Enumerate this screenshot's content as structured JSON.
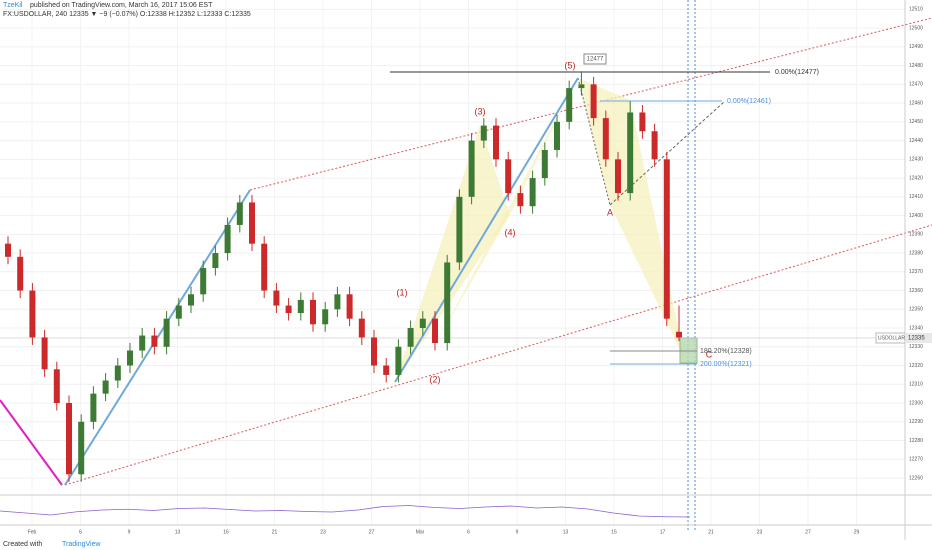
{
  "header": {
    "author": "TzeKil",
    "published": "published on TradingView.com, March 16, 2017 15:06 EST",
    "symbol_line": "FX:USDOLLAR, 240  12335 ▼ −9 (−0.07%) O:12338 H:12352 L:12333 C:12335"
  },
  "chart_data": {
    "type": "candlestick",
    "symbol": "USDOLLAR",
    "last_price": 12335,
    "open": [
      12385,
      12378,
      12360,
      12335,
      12318,
      12300,
      12262,
      12290,
      12305,
      12312,
      12320,
      12328,
      12336,
      12330,
      12345,
      12352,
      12358,
      12372,
      12380,
      12395,
      12407,
      12385,
      12360,
      12352,
      12348,
      12355,
      12342,
      12350,
      12358,
      12345,
      12335,
      12320,
      12315,
      12330,
      12340,
      12345,
      12332,
      12375,
      12410,
      12440,
      12448,
      12430,
      12412,
      12405,
      12420,
      12435,
      12450,
      12468,
      12470,
      12452,
      12430,
      12412,
      12455,
      12445,
      12430,
      12338
    ],
    "high": [
      12389,
      12382,
      12364,
      12339,
      12322,
      12304,
      12294,
      12309,
      12316,
      12324,
      12332,
      12340,
      12340,
      12349,
      12356,
      12362,
      12376,
      12384,
      12399,
      12411,
      12411,
      12389,
      12364,
      12356,
      12359,
      12359,
      12354,
      12362,
      12362,
      12349,
      12339,
      12324,
      12334,
      12344,
      12349,
      12349,
      12379,
      12414,
      12444,
      12452,
      12452,
      12434,
      12416,
      12424,
      12439,
      12454,
      12472,
      12477,
      12474,
      12456,
      12434,
      12461,
      12459,
      12449,
      12434,
      12352
    ],
    "low": [
      12374,
      12356,
      12331,
      12314,
      12296,
      12258,
      12258,
      12286,
      12301,
      12308,
      12316,
      12324,
      12326,
      12326,
      12341,
      12348,
      12354,
      12368,
      12376,
      12391,
      12381,
      12356,
      12348,
      12344,
      12344,
      12338,
      12338,
      12346,
      12341,
      12331,
      12316,
      12311,
      12311,
      12326,
      12336,
      12328,
      12328,
      12371,
      12406,
      12436,
      12426,
      12408,
      12401,
      12401,
      12416,
      12431,
      12446,
      12464,
      12448,
      12426,
      12408,
      12408,
      12441,
      12426,
      12341,
      12333
    ],
    "close": [
      12378,
      12360,
      12335,
      12318,
      12300,
      12262,
      12290,
      12305,
      12312,
      12320,
      12328,
      12336,
      12330,
      12345,
      12352,
      12358,
      12372,
      12380,
      12395,
      12407,
      12385,
      12360,
      12352,
      12348,
      12355,
      12342,
      12350,
      12358,
      12345,
      12335,
      12320,
      12315,
      12330,
      12340,
      12345,
      12332,
      12375,
      12410,
      12440,
      12448,
      12430,
      12412,
      12405,
      12420,
      12435,
      12450,
      12468,
      12470,
      12452,
      12430,
      12412,
      12455,
      12445,
      12430,
      12345,
      12335
    ],
    "up_color": "#3d7a34",
    "down_color": "#cc2a2a",
    "ylim": [
      12252,
      12515
    ],
    "yticks": [
      12260,
      12270,
      12280,
      12290,
      12300,
      12310,
      12320,
      12330,
      12340,
      12350,
      12360,
      12370,
      12380,
      12390,
      12400,
      12410,
      12420,
      12430,
      12440,
      12450,
      12460,
      12470,
      12480,
      12490,
      12500,
      12510
    ],
    "x_axis_labels": [
      "Feb",
      "6",
      "9",
      "13",
      "16",
      "21",
      "23",
      "27",
      "Mar",
      "6",
      "9",
      "13",
      "15",
      "17",
      "21",
      "23",
      "27",
      "29"
    ],
    "rsi": {
      "values": [
        48,
        40,
        32,
        45,
        52,
        55,
        50,
        58,
        60,
        54,
        48,
        50,
        46,
        44,
        52,
        66,
        70,
        62,
        58,
        64,
        68,
        60,
        64,
        56,
        40,
        28,
        25,
        24
      ],
      "ylim": [
        0,
        100
      ],
      "color": "#8a5fd0"
    },
    "annotations": {
      "waves": [
        "(1)",
        "(2)",
        "(3)",
        "(4)",
        "(5)"
      ],
      "points": [
        "A",
        "C"
      ],
      "top_label": "12477",
      "fib": [
        "0.00%(12477)",
        "0.00%(12461)",
        "180.20%(12328)",
        "200.00%(12321)"
      ]
    }
  },
  "footer": {
    "created": "Created with",
    "brand": "TradingView"
  }
}
